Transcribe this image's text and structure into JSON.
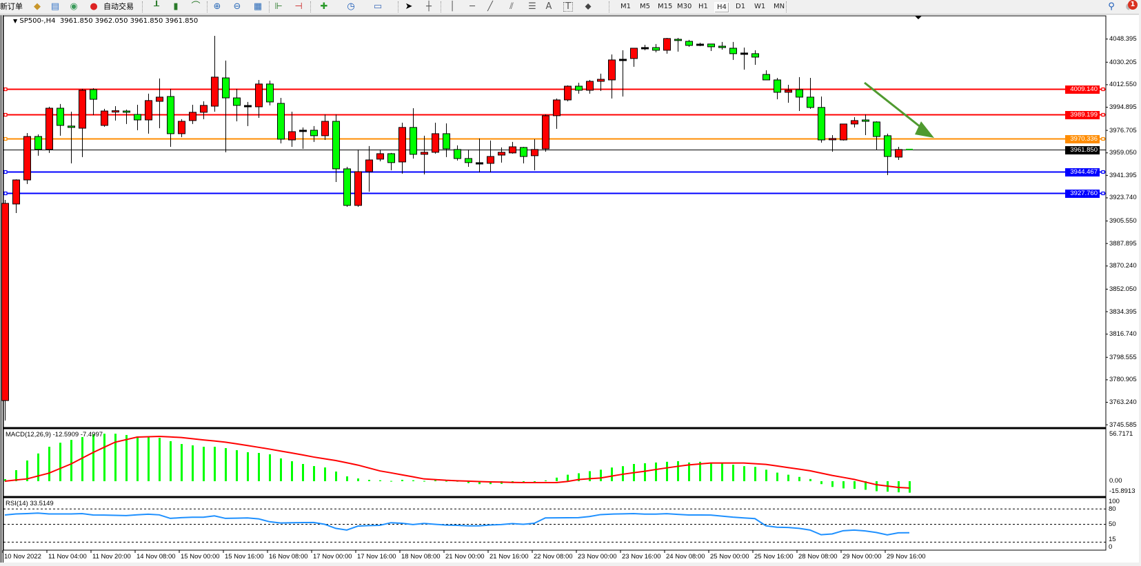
{
  "toolbar": {
    "new_order": "新订单",
    "auto_trading": "自动交易",
    "icons": [
      "history-center-icon",
      "market-watch-icon",
      "signals-icon",
      "auto-trading-icon",
      "bar-chart-icon",
      "candlestick-icon",
      "line-chart-icon",
      "zoom-in-icon",
      "zoom-out-icon",
      "tile-windows-icon",
      "chart-shift-icon",
      "auto-scroll-icon",
      "indicators-icon",
      "periods-icon",
      "templates-icon",
      "cursor-icon",
      "crosshair-icon",
      "vertical-line-icon",
      "horizontal-line-icon",
      "trendline-icon",
      "equidistant-channel-icon",
      "fibonacci-icon",
      "text-icon",
      "text-label-icon",
      "arrows-icon",
      "search-icon",
      "notifications-icon"
    ],
    "timeframes": [
      "M1",
      "M5",
      "M15",
      "M30",
      "H1",
      "H4",
      "D1",
      "W1",
      "MN"
    ],
    "active_timeframe": "H4",
    "text_tool": "A",
    "label_tool": "T",
    "notification_count": "1"
  },
  "chart": {
    "symbol": "SP500-,H4",
    "ohlc_text": "3961.850 3962.050 3961.850 3961.850",
    "bull_color": "#ff0000",
    "bear_color": "#00ff00",
    "price_axis_labels": [
      "4048.395",
      "4030.205",
      "4012.550",
      "3994.895",
      "3976.705",
      "3959.050",
      "3941.395",
      "3923.740",
      "3905.550",
      "3887.895",
      "3870.240",
      "3852.050",
      "3834.395",
      "3816.740",
      "3798.555",
      "3780.905",
      "3763.240",
      "3745.585"
    ],
    "time_labels": [
      "10 Nov 2022",
      "11 Nov 04:00",
      "11 Nov 20:00",
      "14 Nov 08:00",
      "15 Nov 00:00",
      "15 Nov 16:00",
      "16 Nov 08:00",
      "17 Nov 00:00",
      "17 Nov 16:00",
      "18 Nov 08:00",
      "21 Nov 00:00",
      "21 Nov 16:00",
      "22 Nov 08:00",
      "23 Nov 00:00",
      "23 Nov 16:00",
      "24 Nov 08:00",
      "25 Nov 00:00",
      "25 Nov 16:00",
      "28 Nov 08:00",
      "29 Nov 00:00",
      "29 Nov 16:00"
    ],
    "hlines": [
      {
        "price": "4009.140",
        "color": "#ff0000"
      },
      {
        "price": "3989.199",
        "color": "#ff0000"
      },
      {
        "price": "3970.336",
        "color": "#ff8c00"
      },
      {
        "price": "3944.467",
        "color": "#0000ff"
      },
      {
        "price": "3927.760",
        "color": "#0000ff"
      }
    ],
    "current_price": {
      "price": "3961.850",
      "color": "#000000"
    },
    "trend_arrow": {
      "color": "#4f9a2f",
      "direction": "down-right"
    }
  },
  "chart_data": [
    {
      "type": "candlestick",
      "title": "SP500-,H4",
      "ylim": [
        3743.5,
        4066.6
      ],
      "columns": [
        "open",
        "high",
        "low",
        "close"
      ],
      "candles": [
        [
          3764.6,
          3922.1,
          3748.9,
          3919.4
        ],
        [
          3918.9,
          3938.3,
          3911.8,
          3937.8
        ],
        [
          3937.8,
          3974.6,
          3934.6,
          3971.9
        ],
        [
          3971.9,
          3973.5,
          3956.8,
          3961.7
        ],
        [
          3961.7,
          3995.2,
          3959.0,
          3994.1
        ],
        [
          3994.1,
          3997.4,
          3972.5,
          3980.6
        ],
        [
          3980.1,
          3991.4,
          3950.8,
          3979.0
        ],
        [
          3978.4,
          4009.3,
          3955.7,
          4008.2
        ],
        [
          4008.7,
          4009.8,
          3988.7,
          4001.1
        ],
        [
          3980.6,
          3993.6,
          3979.5,
          3991.9
        ],
        [
          3991.4,
          3995.7,
          3984.4,
          3991.6
        ],
        [
          3991.9,
          3993.0,
          3981.7,
          3990.9
        ],
        [
          3989.2,
          3996.8,
          3976.8,
          3984.9
        ],
        [
          3984.9,
          4005.5,
          3974.1,
          4000.1
        ],
        [
          3999.5,
          4017.4,
          3978.4,
          4002.8
        ],
        [
          4003.3,
          4009.3,
          3963.8,
          3974.1
        ],
        [
          3974.1,
          3985.5,
          3971.4,
          3983.8
        ],
        [
          3984.4,
          3996.8,
          3981.7,
          3990.9
        ],
        [
          3990.9,
          3999.5,
          3985.5,
          3996.3
        ],
        [
          3995.7,
          4050.9,
          3991.4,
          4018.5
        ],
        [
          4017.9,
          4031.5,
          3959.5,
          4002.2
        ],
        [
          4002.2,
          4009.3,
          3983.8,
          3996.3
        ],
        [
          3995.7,
          3999.0,
          3980.1,
          3995.5
        ],
        [
          3995.2,
          4016.3,
          3986.5,
          4013.1
        ],
        [
          4013.1,
          4015.8,
          3996.3,
          3999.0
        ],
        [
          3997.9,
          4002.2,
          3966.5,
          3969.8
        ],
        [
          3969.2,
          3991.4,
          3963.8,
          3975.7
        ],
        [
          3976.3,
          3979.0,
          3962.2,
          3976.1
        ],
        [
          3976.8,
          3980.1,
          3967.6,
          3972.5
        ],
        [
          3972.5,
          3989.2,
          3969.2,
          3983.8
        ],
        [
          3983.8,
          3989.2,
          3936.2,
          3946.5
        ],
        [
          3946.5,
          3948.1,
          3916.7,
          3917.8
        ],
        [
          3917.8,
          3961.7,
          3916.7,
          3944.3
        ],
        [
          3944.3,
          3964.4,
          3928.6,
          3953.5
        ],
        [
          3954.1,
          3961.7,
          3952.4,
          3958.4
        ],
        [
          3958.4,
          3959.0,
          3945.4,
          3951.4
        ],
        [
          3951.9,
          3982.7,
          3942.7,
          3979.0
        ],
        [
          3979.0,
          3994.1,
          3954.6,
          3957.9
        ],
        [
          3957.9,
          3972.5,
          3942.1,
          3959.5
        ],
        [
          3959.5,
          3982.7,
          3958.4,
          3974.1
        ],
        [
          3974.1,
          3982.2,
          3955.7,
          3962.2
        ],
        [
          3961.7,
          3964.9,
          3953.0,
          3954.6
        ],
        [
          3954.6,
          3961.7,
          3948.1,
          3951.4
        ],
        [
          3950.8,
          3970.3,
          3943.8,
          3950.6
        ],
        [
          3950.8,
          3968.7,
          3943.8,
          3956.2
        ],
        [
          3957.3,
          3963.3,
          3951.4,
          3959.5
        ],
        [
          3959.0,
          3967.6,
          3958.4,
          3963.8
        ],
        [
          3963.3,
          3963.8,
          3950.8,
          3956.2
        ],
        [
          3956.8,
          3969.8,
          3945.4,
          3961.7
        ],
        [
          3962.2,
          3989.2,
          3960.0,
          3988.2
        ],
        [
          3988.2,
          4001.7,
          3977.9,
          4000.6
        ],
        [
          4000.6,
          4012.0,
          3999.5,
          4011.4
        ],
        [
          4011.4,
          4014.1,
          4005.5,
          4008.2
        ],
        [
          4008.2,
          4016.3,
          4005.5,
          4015.2
        ],
        [
          4015.2,
          4021.2,
          4007.6,
          4016.8
        ],
        [
          4016.3,
          4036.3,
          4001.7,
          4032.0
        ],
        [
          4032.0,
          4039.6,
          4003.3,
          4031.8
        ],
        [
          4033.1,
          4041.2,
          4026.6,
          4041.2
        ],
        [
          4041.2,
          4043.9,
          4039.6,
          4041.0
        ],
        [
          4041.7,
          4044.5,
          4038.0,
          4039.6
        ],
        [
          4039.6,
          4049.3,
          4036.9,
          4048.8
        ],
        [
          4048.2,
          4049.3,
          4038.5,
          4047.2
        ],
        [
          4046.6,
          4047.7,
          4042.3,
          4043.4
        ],
        [
          4043.9,
          4045.5,
          4042.8,
          4043.7
        ],
        [
          4044.5,
          4044.6,
          4039.0,
          4042.3
        ],
        [
          4042.8,
          4046.1,
          4040.1,
          4041.7
        ],
        [
          4041.2,
          4046.1,
          4032.0,
          4036.9
        ],
        [
          4036.9,
          4041.7,
          4024.4,
          4036.7
        ],
        [
          4036.9,
          4039.6,
          4028.2,
          4034.2
        ],
        [
          4020.6,
          4023.9,
          4016.3,
          4016.3
        ],
        [
          4016.3,
          4017.9,
          4001.1,
          4006.6
        ],
        [
          4006.6,
          4012.5,
          3998.4,
          4008.2
        ],
        [
          4008.7,
          4018.5,
          3991.9,
          4002.8
        ],
        [
          4002.8,
          4017.9,
          3993.6,
          3994.7
        ],
        [
          3994.7,
          4003.3,
          3967.1,
          3969.2
        ],
        [
          3969.2,
          3973.0,
          3960.0,
          3969.8
        ],
        [
          3969.2,
          3981.7,
          3968.7,
          3981.7
        ],
        [
          3981.7,
          3987.1,
          3979.0,
          3984.4
        ],
        [
          3984.9,
          3989.2,
          3973.0,
          3983.8
        ],
        [
          3983.3,
          3983.8,
          3961.1,
          3971.9
        ],
        [
          3972.5,
          3974.1,
          3941.6,
          3956.2
        ],
        [
          3955.7,
          3963.8,
          3953.5,
          3961.7
        ],
        [
          3961.85,
          3962.05,
          3961.85,
          3961.85
        ]
      ]
    },
    {
      "type": "bar+line",
      "title": "MACD(12,26,9)",
      "label_value_main": "-12.5909",
      "label_value_signal": "-7.4997",
      "axis_labels": [
        "56.7171",
        "0.00",
        "-15.8913"
      ],
      "ylim": [
        -15.8913,
        56.7171
      ],
      "histogram_color": "#00ff00",
      "signal_color": "#ff0000",
      "histogram": [
        2.3,
        12.1,
        22.7,
        30.4,
        37.8,
        42.2,
        45.3,
        48.4,
        51.4,
        52.1,
        52.1,
        50.7,
        49.2,
        48.4,
        47.6,
        43.9,
        40.8,
        39.3,
        37.8,
        37.8,
        36.3,
        34.0,
        31.8,
        31.0,
        29.5,
        25.0,
        21.9,
        18.9,
        16.6,
        15.1,
        10.6,
        5.3,
        3.0,
        1.5,
        1.0,
        0.3,
        1.5,
        1.0,
        0.3,
        1.0,
        0.3,
        0.2,
        -2.1,
        -3.2,
        -3.2,
        -2.9,
        -2.1,
        -0.5,
        -0.3,
        0.8,
        3.9,
        7.1,
        8.7,
        11.0,
        12.6,
        15.0,
        16.5,
        18.9,
        19.7,
        20.5,
        21.3,
        22.0,
        20.5,
        21.3,
        19.7,
        19.7,
        18.1,
        16.5,
        15.7,
        12.6,
        9.4,
        7.1,
        4.7,
        2.4,
        -3.2,
        -6.3,
        -7.9,
        -8.4,
        -9.4,
        -11.0,
        -11.5,
        -12.2,
        -12.59
      ],
      "signal": [
        0,
        1.3,
        2.5,
        5.7,
        8.8,
        13.9,
        18.9,
        25.2,
        31.5,
        37.2,
        42.8,
        45.6,
        48.4,
        48.8,
        49.2,
        48.6,
        47.9,
        46.6,
        45.3,
        44.1,
        42.8,
        41.0,
        39.1,
        37.2,
        35.2,
        33.1,
        31.0,
        28.8,
        26.5,
        24.6,
        22.7,
        20.2,
        17.7,
        14.5,
        11.3,
        9.2,
        7.0,
        4.8,
        2.5,
        1.8,
        1.0,
        0.5,
        0.1,
        -0.4,
        -0.8,
        -1.0,
        -1.3,
        -1.5,
        -1.5,
        -1.5,
        -1.5,
        -0.3,
        1.8,
        2.7,
        3.5,
        5.6,
        7.6,
        9.3,
        10.9,
        12.8,
        14.6,
        16.3,
        17.9,
        18.9,
        19.9,
        19.9,
        19.9,
        19.9,
        19.2,
        18.4,
        16.7,
        14.9,
        13.2,
        11.4,
        8.9,
        6.3,
        4.2,
        2.0,
        -0.9,
        -3.8,
        -5.3,
        -6.8,
        -7.5
      ]
    },
    {
      "type": "line",
      "title": "RSI(14)",
      "label_value": "33.5149",
      "axis_labels": [
        "100",
        "80",
        "50",
        "15",
        "0"
      ],
      "levels": [
        80,
        50,
        15
      ],
      "ylim": [
        0,
        100
      ],
      "color": "#1e90ff",
      "values": [
        68.3,
        70.2,
        71.0,
        71.9,
        70.2,
        70.2,
        70.2,
        71.0,
        68.3,
        68.0,
        67.5,
        67.0,
        68.5,
        69.7,
        68.5,
        61.6,
        63.0,
        63.8,
        63.8,
        66.5,
        61.6,
        62.0,
        62.5,
        60.7,
        55.0,
        52.5,
        53.1,
        53.3,
        53.5,
        50.0,
        42.0,
        38.7,
        46.4,
        47.5,
        48.0,
        53.1,
        52.0,
        49.5,
        51.7,
        50.0,
        48.5,
        48.0,
        47.0,
        47.0,
        48.6,
        49.5,
        51.3,
        50.0,
        52.0,
        62.5,
        62.7,
        62.8,
        63.0,
        65.2,
        69.0,
        70.0,
        70.5,
        71.0,
        70.0,
        70.0,
        70.8,
        69.5,
        68.3,
        68.3,
        68.0,
        66.0,
        64.0,
        62.5,
        61.1,
        47.0,
        44.2,
        43.8,
        42.0,
        38.7,
        29.5,
        31.1,
        37.4,
        38.7,
        37.0,
        34.0,
        29.3,
        33.3,
        33.5
      ]
    }
  ]
}
